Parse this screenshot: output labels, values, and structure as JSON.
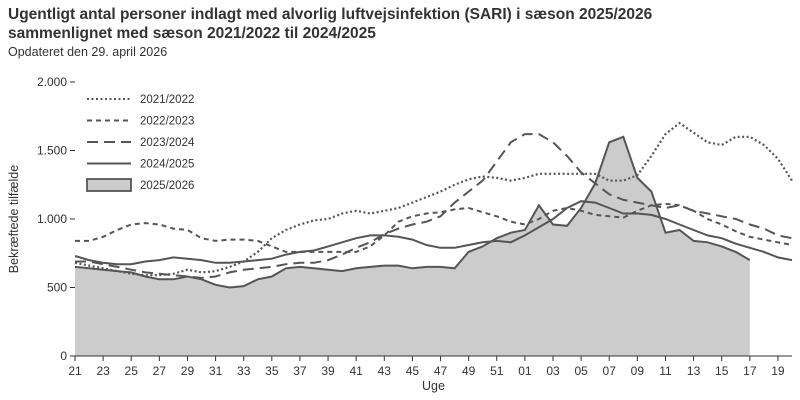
{
  "chart_data": {
    "type": "line",
    "title_line1": "Ugentligt antal personer indlagt med alvorlig luftvejsinfektion (SARI) i sæson 2025/2026",
    "title_line2": "sammenlignet med sæson 2021/2022 til 2024/2025",
    "subtitle": "Opdateret den 29. april 2026",
    "xlabel": "Uge",
    "ylabel": "Bekræftede tilfælde",
    "ylim": [
      0,
      2000
    ],
    "yticks": [
      {
        "value": 0,
        "label": "0"
      },
      {
        "value": 500,
        "label": "500"
      },
      {
        "value": 1000,
        "label": "1.000"
      },
      {
        "value": 1500,
        "label": "1.500"
      },
      {
        "value": 2000,
        "label": "2.000"
      }
    ],
    "x_labels": [
      "21",
      "23",
      "25",
      "27",
      "29",
      "31",
      "33",
      "35",
      "37",
      "39",
      "41",
      "43",
      "45",
      "47",
      "49",
      "51",
      "01",
      "03",
      "05",
      "07",
      "09",
      "11",
      "13",
      "15",
      "17",
      "19"
    ],
    "weeks": [
      "21",
      "22",
      "23",
      "24",
      "25",
      "26",
      "27",
      "28",
      "29",
      "30",
      "31",
      "32",
      "33",
      "34",
      "35",
      "36",
      "37",
      "38",
      "39",
      "40",
      "41",
      "42",
      "43",
      "44",
      "45",
      "46",
      "47",
      "48",
      "49",
      "50",
      "51",
      "52",
      "01",
      "02",
      "03",
      "04",
      "05",
      "06",
      "07",
      "08",
      "09",
      "10",
      "11",
      "12",
      "13",
      "14",
      "15",
      "16",
      "17",
      "18",
      "19",
      "20"
    ],
    "grid": false,
    "legend_position": "top-left",
    "series": [
      {
        "name": "2021/2022",
        "style": "dotted",
        "color": "#555555",
        "values": [
          680,
          660,
          640,
          620,
          600,
          590,
          590,
          600,
          630,
          610,
          620,
          650,
          690,
          760,
          860,
          920,
          960,
          990,
          1000,
          1040,
          1060,
          1040,
          1060,
          1080,
          1120,
          1160,
          1200,
          1250,
          1290,
          1310,
          1300,
          1280,
          1300,
          1330,
          1330,
          1330,
          1330,
          1330,
          1280,
          1280,
          1320,
          1460,
          1620,
          1700,
          1630,
          1560,
          1540,
          1600,
          1600,
          1540,
          1440,
          1280
        ]
      },
      {
        "name": "2022/2023",
        "style": "short-dash",
        "color": "#555555",
        "values": [
          840,
          840,
          870,
          920,
          960,
          970,
          960,
          930,
          920,
          860,
          840,
          850,
          850,
          840,
          800,
          760,
          760,
          760,
          760,
          760,
          760,
          800,
          880,
          980,
          1020,
          1040,
          1050,
          1070,
          1080,
          1050,
          1020,
          980,
          960,
          1000,
          1060,
          1080,
          1060,
          1030,
          1020,
          1010,
          1060,
          1100,
          1110,
          1100,
          1060,
          1000,
          960,
          910,
          870,
          850,
          830,
          810
        ]
      },
      {
        "name": "2023/2024",
        "style": "long-dash",
        "color": "#555555",
        "values": [
          690,
          690,
          670,
          650,
          630,
          610,
          600,
          590,
          580,
          570,
          580,
          610,
          630,
          640,
          650,
          670,
          680,
          680,
          700,
          740,
          790,
          830,
          890,
          930,
          960,
          980,
          1020,
          1120,
          1200,
          1280,
          1420,
          1560,
          1620,
          1620,
          1560,
          1460,
          1340,
          1260,
          1180,
          1140,
          1120,
          1100,
          1080,
          1100,
          1060,
          1040,
          1020,
          1000,
          960,
          930,
          880,
          860
        ]
      },
      {
        "name": "2024/2025",
        "style": "solid",
        "color": "#555555",
        "values": [
          730,
          700,
          680,
          670,
          670,
          690,
          700,
          720,
          710,
          700,
          680,
          680,
          690,
          700,
          710,
          740,
          760,
          770,
          800,
          830,
          860,
          880,
          880,
          870,
          850,
          810,
          790,
          790,
          810,
          830,
          840,
          830,
          880,
          940,
          1000,
          1080,
          1130,
          1120,
          1080,
          1040,
          1040,
          1030,
          1000,
          960,
          920,
          880,
          860,
          820,
          790,
          760,
          720,
          700
        ]
      },
      {
        "name": "2025/2026",
        "style": "area",
        "color": "#cccccc",
        "stroke": "#555555",
        "values": [
          650,
          640,
          630,
          620,
          610,
          580,
          560,
          560,
          580,
          560,
          520,
          500,
          510,
          560,
          580,
          640,
          650,
          640,
          630,
          620,
          640,
          650,
          660,
          660,
          640,
          650,
          650,
          640,
          760,
          800,
          860,
          900,
          920,
          1100,
          960,
          950,
          1080,
          1260,
          1560,
          1600,
          1300,
          1200,
          900,
          920,
          840,
          830,
          800,
          760,
          700
        ]
      }
    ]
  }
}
